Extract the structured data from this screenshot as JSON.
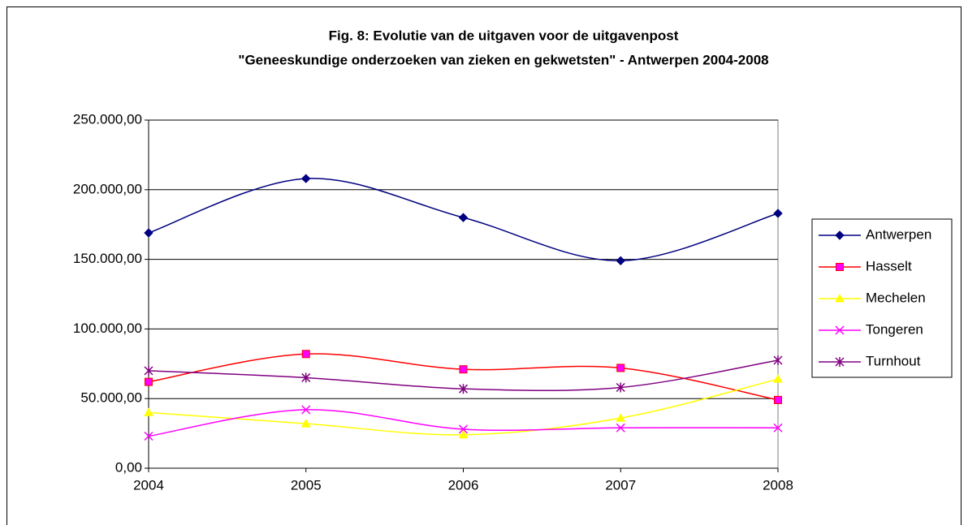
{
  "chart_data": {
    "type": "line",
    "title": [
      "Fig. 8: Evolutie van de uitgaven voor de uitgavenpost",
      "\"Geneeskundige onderzoeken van zieken en gekwetsten\" - Antwerpen 2004-2008"
    ],
    "categories": [
      "2004",
      "2005",
      "2006",
      "2007",
      "2008"
    ],
    "series": [
      {
        "name": "Antwerpen",
        "color": "#000080",
        "marker": "diamond",
        "values": [
          169000,
          208000,
          180000,
          149000,
          183000
        ]
      },
      {
        "name": "Hasselt",
        "color": "#FF0000",
        "marker_color": "#FF00FF",
        "marker": "square",
        "values": [
          62000,
          82000,
          71000,
          72000,
          49000
        ]
      },
      {
        "name": "Mechelen",
        "color": "#FFFF00",
        "marker": "triangle",
        "values": [
          40000,
          32000,
          24000,
          36000,
          64000
        ]
      },
      {
        "name": "Tongeren",
        "color": "#FF00FF",
        "marker": "x",
        "values": [
          23000,
          42000,
          28000,
          29000,
          29000
        ]
      },
      {
        "name": "Turnhout",
        "color": "#800080",
        "marker": "star",
        "values": [
          70000,
          65000,
          57000,
          58000,
          77500
        ]
      }
    ],
    "ylim": [
      0,
      250000
    ],
    "yticks": [
      {
        "value": 0,
        "label": "0,00"
      },
      {
        "value": 50000,
        "label": "50.000,00"
      },
      {
        "value": 100000,
        "label": "100.000,00"
      },
      {
        "value": 150000,
        "label": "150.000,00"
      },
      {
        "value": 200000,
        "label": "200.000,00"
      },
      {
        "value": 250000,
        "label": "250.000,00"
      }
    ],
    "grid": true,
    "smooth": true,
    "legend": "right"
  }
}
